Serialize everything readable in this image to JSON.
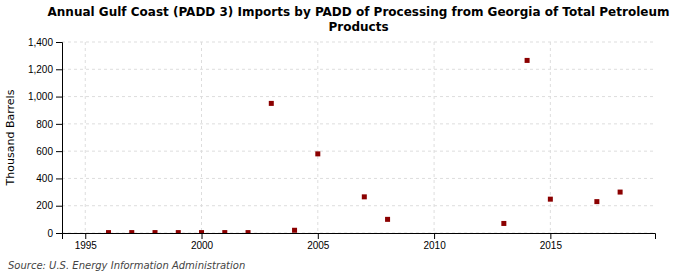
{
  "chart_data": {
    "type": "scatter",
    "title": "Annual Gulf Coast (PADD 3) Imports by PADD of Processing from Georgia of Total Petroleum\nProducts",
    "y_label": "Thousand Barrels",
    "source": "Source: U.S. Energy Information Administration",
    "x": [
      1996,
      1997,
      1998,
      1999,
      2000,
      2001,
      2002,
      2003,
      2004,
      2005,
      2007,
      2008,
      2013,
      2014,
      2015,
      2017,
      2018
    ],
    "values": [
      3,
      3,
      3,
      3,
      3,
      3,
      3,
      950,
      20,
      580,
      265,
      100,
      70,
      1265,
      248,
      230,
      300
    ],
    "color": "#8b0000",
    "marker": "square",
    "xlim": [
      1994.0,
      2019.5
    ],
    "ylim": [
      0,
      1400
    ],
    "xticks": [
      1995,
      2000,
      2005,
      2010,
      2015
    ],
    "yticks": [
      0,
      200,
      400,
      600,
      800,
      {
        "value": 1000,
        "label": "1,000"
      },
      {
        "value": 1200,
        "label": "1,200"
      },
      {
        "value": 1400,
        "label": "1,400"
      }
    ],
    "grid": true
  }
}
